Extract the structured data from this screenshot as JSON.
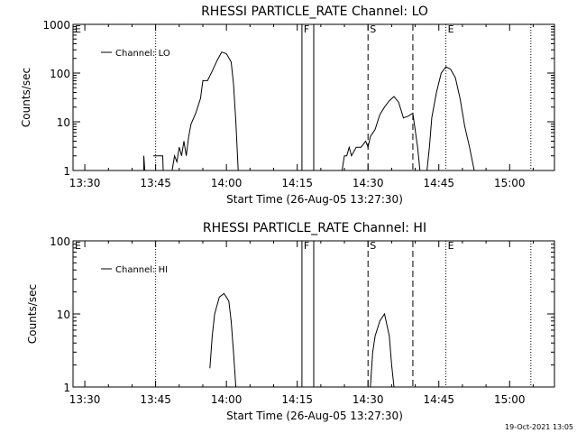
{
  "footer": {
    "timestamp": "19-Oct-2021 13:05"
  },
  "chart_data": [
    {
      "type": "line",
      "title": "RHESSI PARTICLE_RATE Channel: LO",
      "xlabel": "Start Time (26-Aug-05 13:27:30)",
      "ylabel": "Counts/sec",
      "x_unit": "minutes after 13:27:30",
      "xlim": [
        0,
        102
      ],
      "ylim": [
        1,
        1000
      ],
      "log_y": true,
      "grid": false,
      "legend_position": "top-left",
      "x_ticks": [
        {
          "at": 2.5,
          "label": "13:30"
        },
        {
          "at": 17.5,
          "label": "13:45"
        },
        {
          "at": 32.5,
          "label": "14:00"
        },
        {
          "at": 47.5,
          "label": "14:15"
        },
        {
          "at": 62.5,
          "label": "14:30"
        },
        {
          "at": 77.5,
          "label": "14:45"
        },
        {
          "at": 92.5,
          "label": "15:00"
        }
      ],
      "y_ticks": [
        {
          "at": 1,
          "label": "1"
        },
        {
          "at": 10,
          "label": "10"
        },
        {
          "at": 100,
          "label": "100"
        },
        {
          "at": 1000,
          "label": "1000"
        }
      ],
      "markers": [
        {
          "at": 0,
          "label": "E",
          "style": "dotted"
        },
        {
          "at": 17.5,
          "label": "",
          "style": "dotted"
        },
        {
          "at": 48.5,
          "label": "F",
          "style": "solid"
        },
        {
          "at": 51,
          "label": "",
          "style": "solid"
        },
        {
          "at": 62.5,
          "label": "S",
          "style": "dashed"
        },
        {
          "at": 72,
          "label": "",
          "style": "dashed"
        },
        {
          "at": 79,
          "label": "E",
          "style": "dotted"
        },
        {
          "at": 97,
          "label": "",
          "style": "dotted"
        }
      ],
      "series": [
        {
          "name": "Channel: LO",
          "segments": [
            [
              [
                15,
                1
              ],
              [
                15,
                2
              ],
              [
                15.2,
                1
              ]
            ],
            [
              [
                17,
                2
              ],
              [
                19,
                2
              ],
              [
                19.1,
                1
              ]
            ],
            [
              [
                21,
                1
              ],
              [
                21.5,
                2
              ],
              [
                22,
                1.5
              ],
              [
                22.5,
                3
              ],
              [
                23,
                2
              ],
              [
                23.5,
                4
              ],
              [
                24,
                2
              ],
              [
                24.5,
                5
              ],
              [
                25,
                9
              ],
              [
                26,
                15
              ],
              [
                27,
                30
              ],
              [
                27.5,
                70
              ],
              [
                28.5,
                70
              ],
              [
                29.5,
                110
              ],
              [
                30.5,
                180
              ],
              [
                31.5,
                270
              ],
              [
                32.5,
                250
              ],
              [
                33.5,
                170
              ],
              [
                34,
                60
              ],
              [
                34.5,
                10
              ],
              [
                35,
                1
              ]
            ],
            [
              [
                57,
                1
              ],
              [
                57.5,
                2
              ],
              [
                58,
                2
              ],
              [
                58.5,
                3
              ],
              [
                59,
                2
              ],
              [
                60,
                3
              ],
              [
                61,
                3
              ],
              [
                62,
                4
              ],
              [
                62.5,
                3
              ],
              [
                63,
                5
              ],
              [
                64,
                7
              ],
              [
                65,
                14
              ],
              [
                66,
                20
              ],
              [
                67,
                27
              ],
              [
                68,
                33
              ],
              [
                69,
                25
              ],
              [
                70,
                12
              ],
              [
                71,
                13
              ],
              [
                72,
                15
              ],
              [
                73,
                3
              ],
              [
                73.5,
                1
              ]
            ],
            [
              [
                75,
                1
              ],
              [
                75.5,
                3
              ],
              [
                76,
                12
              ],
              [
                77,
                40
              ],
              [
                78,
                100
              ],
              [
                79,
                135
              ],
              [
                80,
                120
              ],
              [
                81,
                80
              ],
              [
                82,
                30
              ],
              [
                83,
                8
              ],
              [
                84,
                3
              ],
              [
                85,
                1
              ]
            ]
          ]
        }
      ]
    },
    {
      "type": "line",
      "title": "RHESSI PARTICLE_RATE Channel: HI",
      "xlabel": "Start Time (26-Aug-05 13:27:30)",
      "ylabel": "Counts/sec",
      "x_unit": "minutes after 13:27:30",
      "xlim": [
        0,
        102
      ],
      "ylim": [
        1,
        100
      ],
      "log_y": true,
      "grid": false,
      "legend_position": "top-left",
      "x_ticks": [
        {
          "at": 2.5,
          "label": "13:30"
        },
        {
          "at": 17.5,
          "label": "13:45"
        },
        {
          "at": 32.5,
          "label": "14:00"
        },
        {
          "at": 47.5,
          "label": "14:15"
        },
        {
          "at": 62.5,
          "label": "14:30"
        },
        {
          "at": 77.5,
          "label": "14:45"
        },
        {
          "at": 92.5,
          "label": "15:00"
        }
      ],
      "y_ticks": [
        {
          "at": 1,
          "label": "1"
        },
        {
          "at": 10,
          "label": "10"
        },
        {
          "at": 100,
          "label": "100"
        }
      ],
      "markers": [
        {
          "at": 0,
          "label": "E",
          "style": "dotted"
        },
        {
          "at": 17.5,
          "label": "",
          "style": "dotted"
        },
        {
          "at": 48.5,
          "label": "F",
          "style": "solid"
        },
        {
          "at": 51,
          "label": "",
          "style": "solid"
        },
        {
          "at": 62.5,
          "label": "S",
          "style": "dashed"
        },
        {
          "at": 72,
          "label": "",
          "style": "dashed"
        },
        {
          "at": 79,
          "label": "E",
          "style": "dotted"
        },
        {
          "at": 97,
          "label": "",
          "style": "dotted"
        }
      ],
      "series": [
        {
          "name": "Channel: HI",
          "segments": [
            [
              [
                29,
                1.8
              ],
              [
                29.5,
                5
              ],
              [
                30,
                10
              ],
              [
                31,
                17
              ],
              [
                32,
                19
              ],
              [
                33,
                15
              ],
              [
                33.5,
                8
              ],
              [
                34,
                3
              ],
              [
                34.5,
                1
              ]
            ],
            [
              [
                63,
                1
              ],
              [
                63.5,
                3
              ],
              [
                64,
                5
              ],
              [
                65,
                8
              ],
              [
                66,
                10
              ],
              [
                67,
                5
              ],
              [
                67.5,
                2
              ],
              [
                68,
                1
              ]
            ]
          ]
        }
      ]
    }
  ]
}
